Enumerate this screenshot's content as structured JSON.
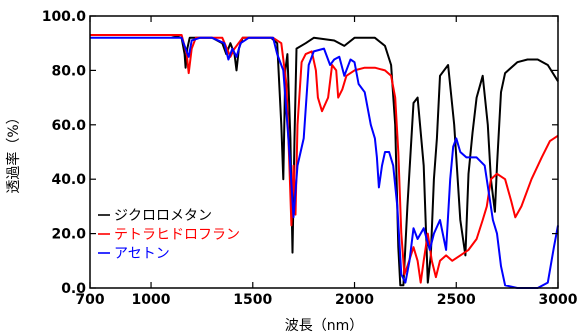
{
  "chart_data": {
    "type": "line",
    "title": "",
    "xlabel": "波長（nm）",
    "ylabel": "透過率（%）",
    "xlim": [
      700,
      3000
    ],
    "ylim": [
      0,
      100
    ],
    "x_ticks": [
      700,
      1000,
      1500,
      2000,
      2500,
      3000
    ],
    "x_tick_labels": [
      "700",
      "1000",
      "1500",
      "2000",
      "2500",
      "3000"
    ],
    "y_ticks": [
      0,
      20,
      40,
      60,
      80,
      100
    ],
    "y_tick_labels": [
      "0.0",
      "20.0",
      "40.0",
      "60.0",
      "80.0",
      "100.0"
    ],
    "grid": false,
    "legend_position": "bottom-left",
    "series": [
      {
        "name": "ジクロロメタン",
        "color": "#000000",
        "points": [
          [
            700,
            93
          ],
          [
            1100,
            93
          ],
          [
            1150,
            92
          ],
          [
            1165,
            86
          ],
          [
            1170,
            81
          ],
          [
            1178,
            88
          ],
          [
            1190,
            92
          ],
          [
            1300,
            92
          ],
          [
            1350,
            90
          ],
          [
            1370,
            86
          ],
          [
            1390,
            90
          ],
          [
            1410,
            86
          ],
          [
            1420,
            80
          ],
          [
            1432,
            88
          ],
          [
            1450,
            92
          ],
          [
            1590,
            92
          ],
          [
            1620,
            90
          ],
          [
            1640,
            60
          ],
          [
            1650,
            40
          ],
          [
            1660,
            80
          ],
          [
            1670,
            86
          ],
          [
            1685,
            55
          ],
          [
            1695,
            13
          ],
          [
            1705,
            55
          ],
          [
            1715,
            88
          ],
          [
            1760,
            90
          ],
          [
            1800,
            92
          ],
          [
            1900,
            91
          ],
          [
            1950,
            89
          ],
          [
            2000,
            92
          ],
          [
            2100,
            92
          ],
          [
            2150,
            89
          ],
          [
            2180,
            82
          ],
          [
            2200,
            60
          ],
          [
            2215,
            15
          ],
          [
            2225,
            1
          ],
          [
            2240,
            1
          ],
          [
            2260,
            30
          ],
          [
            2290,
            68
          ],
          [
            2310,
            70
          ],
          [
            2340,
            45
          ],
          [
            2360,
            2
          ],
          [
            2375,
            12
          ],
          [
            2390,
            40
          ],
          [
            2405,
            55
          ],
          [
            2420,
            78
          ],
          [
            2460,
            82
          ],
          [
            2490,
            60
          ],
          [
            2520,
            25
          ],
          [
            2545,
            12
          ],
          [
            2560,
            42
          ],
          [
            2580,
            57
          ],
          [
            2600,
            70
          ],
          [
            2630,
            78
          ],
          [
            2655,
            60
          ],
          [
            2670,
            40
          ],
          [
            2690,
            28
          ],
          [
            2700,
            45
          ],
          [
            2720,
            72
          ],
          [
            2740,
            79
          ],
          [
            2800,
            83
          ],
          [
            2850,
            84
          ],
          [
            2900,
            84
          ],
          [
            2950,
            82
          ],
          [
            3000,
            76
          ]
        ]
      },
      {
        "name": "テトラヒドロフラン",
        "color": "#ff0000",
        "points": [
          [
            700,
            93
          ],
          [
            1150,
            93
          ],
          [
            1175,
            86
          ],
          [
            1185,
            79
          ],
          [
            1200,
            88
          ],
          [
            1220,
            92
          ],
          [
            1350,
            92
          ],
          [
            1390,
            85
          ],
          [
            1410,
            88
          ],
          [
            1450,
            92
          ],
          [
            1600,
            92
          ],
          [
            1640,
            90
          ],
          [
            1665,
            75
          ],
          [
            1680,
            45
          ],
          [
            1690,
            23
          ],
          [
            1700,
            45
          ],
          [
            1710,
            27
          ],
          [
            1720,
            60
          ],
          [
            1740,
            83
          ],
          [
            1760,
            86
          ],
          [
            1790,
            87
          ],
          [
            1810,
            80
          ],
          [
            1820,
            70
          ],
          [
            1840,
            65
          ],
          [
            1870,
            70
          ],
          [
            1890,
            82
          ],
          [
            1910,
            80
          ],
          [
            1920,
            70
          ],
          [
            1940,
            73
          ],
          [
            1960,
            78
          ],
          [
            2000,
            80
          ],
          [
            2050,
            81
          ],
          [
            2100,
            81
          ],
          [
            2150,
            80
          ],
          [
            2180,
            78
          ],
          [
            2200,
            70
          ],
          [
            2215,
            50
          ],
          [
            2230,
            20
          ],
          [
            2245,
            5
          ],
          [
            2260,
            8
          ],
          [
            2290,
            15
          ],
          [
            2310,
            10
          ],
          [
            2325,
            2
          ],
          [
            2340,
            10
          ],
          [
            2360,
            20
          ],
          [
            2380,
            10
          ],
          [
            2400,
            4
          ],
          [
            2420,
            10
          ],
          [
            2450,
            12
          ],
          [
            2480,
            10
          ],
          [
            2520,
            12
          ],
          [
            2560,
            14
          ],
          [
            2600,
            18
          ],
          [
            2630,
            25
          ],
          [
            2650,
            30
          ],
          [
            2670,
            40
          ],
          [
            2700,
            42
          ],
          [
            2740,
            40
          ],
          [
            2770,
            32
          ],
          [
            2790,
            26
          ],
          [
            2820,
            30
          ],
          [
            2870,
            40
          ],
          [
            2920,
            48
          ],
          [
            2960,
            54
          ],
          [
            3000,
            56
          ]
        ]
      },
      {
        "name": "アセトン",
        "color": "#0000ff",
        "points": [
          [
            700,
            92
          ],
          [
            1150,
            92
          ],
          [
            1170,
            88
          ],
          [
            1185,
            85
          ],
          [
            1200,
            91
          ],
          [
            1240,
            92
          ],
          [
            1300,
            92
          ],
          [
            1360,
            90
          ],
          [
            1380,
            84
          ],
          [
            1400,
            88
          ],
          [
            1420,
            85
          ],
          [
            1440,
            90
          ],
          [
            1480,
            92
          ],
          [
            1540,
            92
          ],
          [
            1600,
            92
          ],
          [
            1620,
            86
          ],
          [
            1650,
            80
          ],
          [
            1680,
            50
          ],
          [
            1700,
            26
          ],
          [
            1720,
            45
          ],
          [
            1735,
            50
          ],
          [
            1750,
            55
          ],
          [
            1775,
            82
          ],
          [
            1800,
            87
          ],
          [
            1850,
            88
          ],
          [
            1880,
            82
          ],
          [
            1900,
            84
          ],
          [
            1925,
            85
          ],
          [
            1950,
            78
          ],
          [
            1980,
            84
          ],
          [
            2000,
            83
          ],
          [
            2020,
            75
          ],
          [
            2050,
            72
          ],
          [
            2080,
            60
          ],
          [
            2100,
            55
          ],
          [
            2110,
            48
          ],
          [
            2120,
            37
          ],
          [
            2135,
            45
          ],
          [
            2150,
            50
          ],
          [
            2170,
            50
          ],
          [
            2190,
            45
          ],
          [
            2210,
            30
          ],
          [
            2230,
            5
          ],
          [
            2250,
            2
          ],
          [
            2270,
            10
          ],
          [
            2290,
            22
          ],
          [
            2310,
            18
          ],
          [
            2340,
            22
          ],
          [
            2370,
            14
          ],
          [
            2390,
            20
          ],
          [
            2420,
            25
          ],
          [
            2450,
            14
          ],
          [
            2470,
            40
          ],
          [
            2485,
            52
          ],
          [
            2500,
            55
          ],
          [
            2520,
            50
          ],
          [
            2550,
            48
          ],
          [
            2600,
            48
          ],
          [
            2640,
            45
          ],
          [
            2660,
            35
          ],
          [
            2680,
            25
          ],
          [
            2700,
            20
          ],
          [
            2720,
            8
          ],
          [
            2740,
            1
          ],
          [
            2800,
            0
          ],
          [
            2900,
            0
          ],
          [
            2950,
            2
          ],
          [
            2980,
            15
          ],
          [
            3000,
            23
          ]
        ]
      }
    ]
  }
}
